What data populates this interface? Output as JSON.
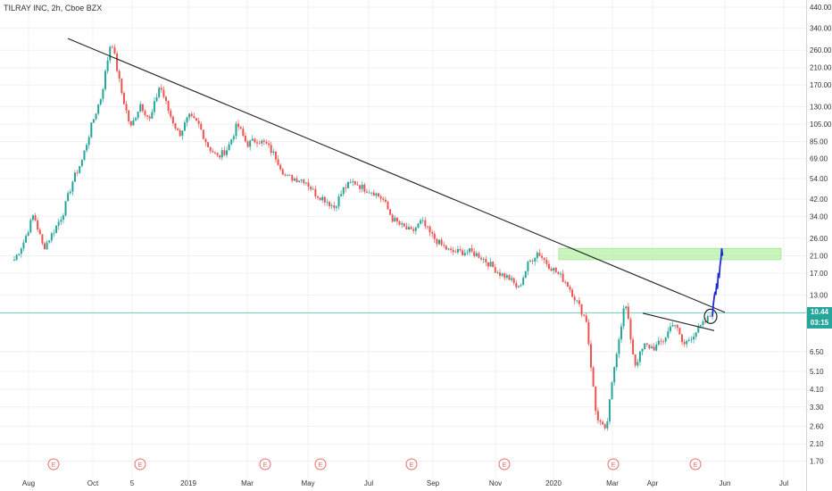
{
  "chart_title": "TILRAY INC, 2h, Cboe BZX",
  "price_axis_ticks": [
    "440.00",
    "340.00",
    "260.00",
    "210.00",
    "170.00",
    "130.00",
    "105.00",
    "85.00",
    "69.00",
    "54.00",
    "42.00",
    "34.00",
    "26.00",
    "21.00",
    "17.00",
    "13.00",
    "6.50",
    "5.10",
    "4.10",
    "3.30",
    "2.60",
    "2.10",
    "1.70"
  ],
  "time_axis_ticks": [
    "Aug",
    "Oct",
    "5",
    "2019",
    "Mar",
    "May",
    "Jul",
    "Sep",
    "Nov",
    "2020",
    "Mar",
    "Apr",
    "Jun",
    "Jul"
  ],
  "earnings_marker_label": "E",
  "last_price_label": "10.44",
  "countdown_label": "03:15",
  "colors": {
    "up_candle": "#26a69a",
    "down_candle": "#ef5350",
    "trendline": "#222222",
    "support_line": "#7fd1c9",
    "resistance_zone": "#b7f0a8",
    "projection": "#1a2dd6",
    "last_price_bg": "#26a69a",
    "earnings_marker": "#e8706a"
  },
  "chart_data": {
    "type": "candlestick",
    "title": "TILRAY INC, 2h, Cboe BZX",
    "y_scale": "log",
    "ylim": [
      1.5,
      450
    ],
    "x_labels": [
      "Aug",
      "Oct",
      "5",
      "2019",
      "Mar",
      "May",
      "Jul",
      "Sep",
      "Nov",
      "2020",
      "Mar",
      "Apr",
      "Jun",
      "Jul"
    ],
    "series": [
      {
        "values": [
          20,
          25,
          35,
          23,
          28,
          35,
          52,
          68,
          105,
          150,
          300,
          160,
          100,
          135,
          110,
          170,
          120,
          92,
          115,
          105,
          80,
          70,
          78,
          105,
          82,
          87,
          82,
          70,
          55,
          54,
          53,
          45,
          42,
          38,
          48,
          52,
          48,
          46,
          42,
          33,
          30,
          28,
          32,
          27,
          24,
          22,
          22,
          22,
          21,
          19,
          17,
          16,
          14,
          19,
          22,
          19,
          17,
          15,
          12,
          9.5,
          3.0,
          2.4,
          6.0,
          12,
          5.5,
          7.0,
          6.8,
          7.5,
          9.5,
          7.0,
          8.0,
          9.0,
          10.44
        ]
      }
    ],
    "annotations": {
      "descending_trendline": {
        "start": 300,
        "end": 10.5
      },
      "support_price": 10.44,
      "resistance_zone": [
        20,
        23
      ],
      "projection_target": 23
    },
    "earnings_markers": 8,
    "grid": true
  }
}
